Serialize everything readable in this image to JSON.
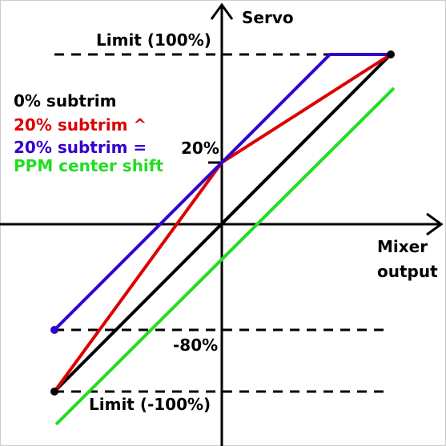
{
  "axes": {
    "y_label": "Servo",
    "x_label_line1": "Mixer",
    "x_label_line2": "output",
    "limit_top": "Limit (100%)",
    "limit_bottom": "Limit (-100%)",
    "tick_20": "20%",
    "tick_minus80": "-80%"
  },
  "legend": [
    {
      "text": "0% subtrim",
      "color": "#000000"
    },
    {
      "text": "20% subtrim ^",
      "color": "#dd0000"
    },
    {
      "text": "20% subtrim =",
      "color": "#3300cc"
    },
    {
      "text": "PPM center shift",
      "color": "#22dd22"
    }
  ],
  "colors": {
    "background": "#ffffff",
    "axis": "#000000",
    "zero_subtrim": "#000000",
    "subtrim_scaled": "#dd0000",
    "subtrim_shifted": "#3300cc",
    "ppm_center_shift": "#22dd22"
  },
  "icons": {
    "y_axis_arrow": "arrow-up",
    "x_axis_arrow": "arrow-right"
  }
}
